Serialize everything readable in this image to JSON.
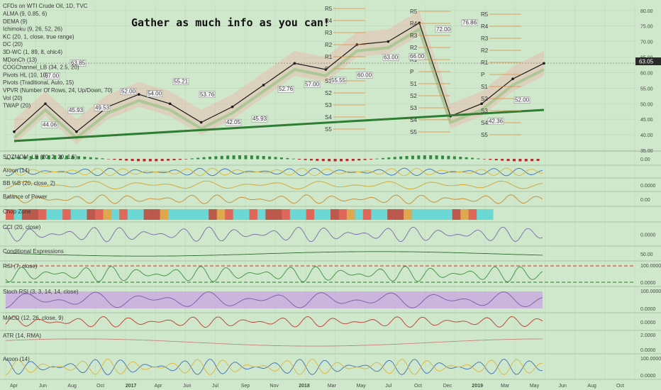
{
  "header": {
    "symbol_title": "CFDs on WTI Crude Oil, 1D, TVC",
    "banner": "Gather as much info as you can!",
    "price_badge": "63.05"
  },
  "indicator_legend": [
    "ALMA (9, 0.85, 6)",
    "DEMA (9)",
    "Ichimoku (9, 26, 52, 26)",
    "KC (20, 1, close, true range)",
    "DC (20)",
    "3D-WC (1, 89, 8, ohlc4)",
    "MDonCh (13)",
    "COGChannel_LB (34, 2.5, 20)",
    "Pivots HL (10, 10)",
    "Pivots (Traditional, Auto, 15)",
    "VPVR (Number Of Rows, 24, Up/Down, 70)",
    "Vol (20)",
    "TWAP (20)"
  ],
  "pane_labels": [
    "SQZMOM_LB (20, 2, 20, 1.5)",
    "Aroon (14)",
    "BB %B (20, close, 2)",
    "Balance of Power",
    "Chop Zone",
    "CCI (20, close)",
    "Conditional Expressions",
    "RSI (7, close)",
    "Stoch RSI (3, 3, 14, 14, close)",
    "MACD (12, 26, close, 9)",
    "ATR (14, RMA)",
    "Aroon (14)"
  ],
  "pane_scales": [
    [
      "0.00"
    ],
    [],
    [
      "0.0000"
    ],
    [
      "0.00"
    ],
    [],
    [
      "0.0000"
    ],
    [
      "50.00"
    ],
    [
      "100.0000",
      "0.0000"
    ],
    [
      "100.0000",
      "0.0000"
    ],
    [
      "0.0000"
    ],
    [
      "2.0000",
      "0.0000"
    ],
    [
      "100.0000",
      "0.0000"
    ]
  ],
  "chart_data": {
    "type": "line",
    "title": "CFDs on WTI Crude Oil, 1D, TVC",
    "x": [
      "2016-04",
      "2016-06",
      "2016-08",
      "2016-10",
      "2017-01",
      "2017-04",
      "2017-07",
      "2017-09",
      "2017-11",
      "2018-01",
      "2018-03",
      "2018-05",
      "2018-07",
      "2018-10",
      "2018-12",
      "2019-01",
      "2019-03",
      "2019-05"
    ],
    "series": [
      {
        "values": [
          41,
          50,
          41,
          49,
          53,
          50,
          44,
          49,
          56,
          63,
          61,
          69,
          70,
          76,
          46,
          50,
          58,
          63
        ]
      }
    ],
    "ylim": [
      35,
      82
    ],
    "price_axis_ticks": [
      "80.00",
      "75.00",
      "70.00",
      "65.00",
      "60.00",
      "55.00",
      "50.00",
      "45.00",
      "40.00",
      "35.00"
    ],
    "time_axis_labels": [
      "Apr",
      "Jun",
      "Aug",
      "Oct",
      "2017",
      "Apr",
      "Jun",
      "Jul",
      "Sep",
      "Nov",
      "2018",
      "Mar",
      "May",
      "Jul",
      "Oct",
      "Dec",
      "2019",
      "Mar",
      "May",
      "Jun",
      "Aug",
      "Oct"
    ],
    "last_price": 63.05,
    "price_labels": [
      "44.06",
      "45.93",
      "49.53",
      "52.00",
      "54.00",
      "55.21",
      "53.76",
      "42.05",
      "45.93",
      "52.76",
      "57.00",
      "55.55",
      "60.00",
      "63.00",
      "66.00",
      "72.00",
      "76.86",
      "42.36",
      "52.00",
      "57.00",
      "63.85"
    ],
    "pivot_labels": [
      "R5",
      "R4",
      "R3",
      "R2",
      "R1",
      "P",
      "S1",
      "S2",
      "S3",
      "S4",
      "S5"
    ],
    "grid": true,
    "legend": "top-left"
  }
}
